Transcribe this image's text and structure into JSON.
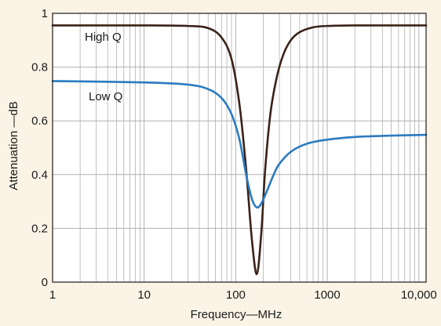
{
  "chart_data": {
    "type": "line",
    "xlabel": "Frequency—MHz",
    "ylabel": "Attenuation —dB",
    "xscale": "log",
    "xlim": [
      1,
      12000
    ],
    "ylim": [
      0,
      1
    ],
    "grid": true,
    "x_ticks": [
      {
        "value": 1,
        "label": "1"
      },
      {
        "value": 10,
        "label": "10"
      },
      {
        "value": 100,
        "label": "100"
      },
      {
        "value": 1000,
        "label": "1000"
      },
      {
        "value": 10000,
        "label": "10,000"
      }
    ],
    "y_ticks": [
      {
        "value": 0,
        "label": "0"
      },
      {
        "value": 0.2,
        "label": "0.2"
      },
      {
        "value": 0.4,
        "label": "0.4"
      },
      {
        "value": 0.6,
        "label": "0.6"
      },
      {
        "value": 0.8,
        "label": "0.8"
      },
      {
        "value": 1,
        "label": "1"
      }
    ],
    "series": [
      {
        "name": "High Q",
        "color": "#3a2218",
        "x": [
          1,
          10,
          30,
          50,
          70,
          90,
          110,
          130,
          150,
          170,
          190,
          210,
          240,
          280,
          330,
          400,
          500,
          700,
          1000,
          2000,
          5000,
          12000
        ],
        "y": [
          0.955,
          0.955,
          0.953,
          0.945,
          0.91,
          0.83,
          0.66,
          0.42,
          0.16,
          0.03,
          0.18,
          0.42,
          0.63,
          0.76,
          0.845,
          0.9,
          0.93,
          0.948,
          0.953,
          0.955,
          0.955,
          0.955
        ]
      },
      {
        "name": "Low Q",
        "color": "#2a7bc0",
        "x": [
          1,
          10,
          30,
          50,
          70,
          90,
          110,
          130,
          150,
          170,
          190,
          220,
          260,
          300,
          400,
          600,
          1000,
          2000,
          5000,
          12000
        ],
        "y": [
          0.748,
          0.743,
          0.735,
          0.718,
          0.685,
          0.625,
          0.53,
          0.4,
          0.31,
          0.278,
          0.292,
          0.34,
          0.4,
          0.44,
          0.485,
          0.515,
          0.53,
          0.54,
          0.545,
          0.548
        ]
      }
    ]
  }
}
